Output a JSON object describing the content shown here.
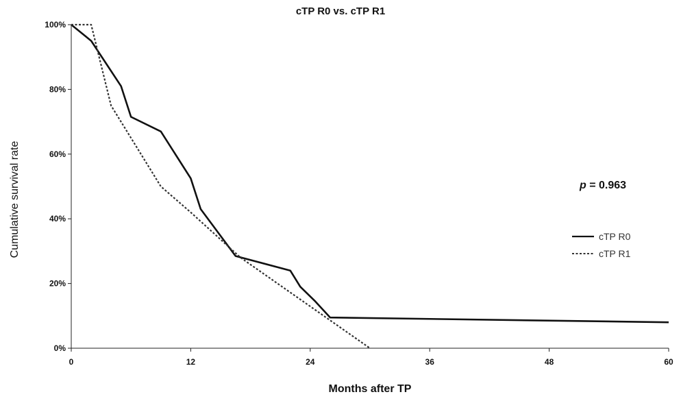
{
  "chart_data": {
    "type": "line",
    "title": "cTP R0 vs. cTP R1",
    "xlabel": "Months after TP",
    "ylabel": "Cumulative survival rate",
    "xlim": [
      0,
      60
    ],
    "ylim": [
      0,
      100
    ],
    "xticks": [
      0,
      12,
      24,
      36,
      48,
      60
    ],
    "yticks": [
      0,
      20,
      40,
      60,
      80,
      100
    ],
    "ytick_labels": [
      "0%",
      "20%",
      "40%",
      "60%",
      "80%",
      "100%"
    ],
    "legend_position": "right",
    "annotation": {
      "p_symbol": "p",
      "p_text": "= 0.963"
    },
    "series": [
      {
        "name": "cTP R0",
        "style": "solid",
        "color": "#111111",
        "x": [
          0,
          2,
          5,
          6,
          9,
          12,
          13,
          16.5,
          22,
          23,
          24.5,
          26,
          60
        ],
        "y": [
          100,
          95,
          81,
          71.5,
          67,
          52.5,
          43,
          28.5,
          24,
          19,
          14.5,
          9.5,
          8
        ]
      },
      {
        "name": "cTP R1",
        "style": "dashed",
        "color": "#333333",
        "x": [
          0,
          2,
          4,
          9,
          12,
          17,
          30
        ],
        "y": [
          100,
          100,
          75,
          50,
          42,
          28,
          0
        ]
      }
    ]
  }
}
